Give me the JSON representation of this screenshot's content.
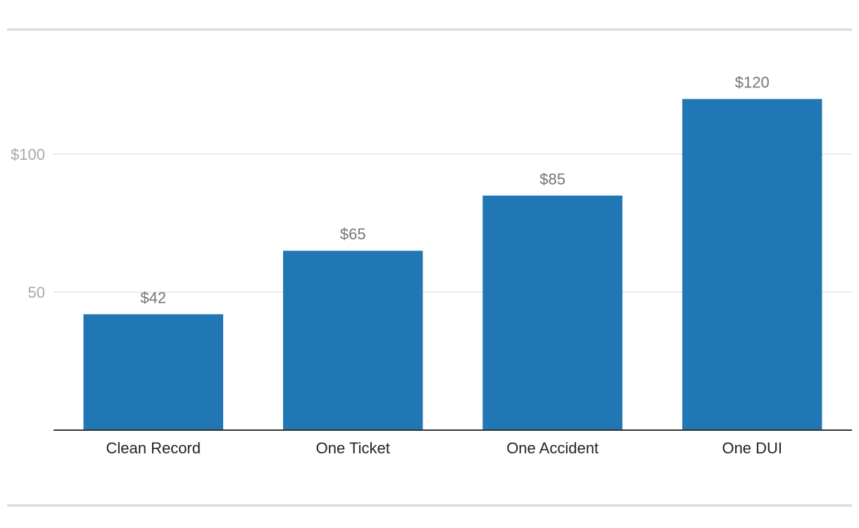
{
  "chart_data": {
    "type": "bar",
    "categories": [
      "Clean Record",
      "One Ticket",
      "One Accident",
      "One DUI"
    ],
    "values": [
      42,
      65,
      85,
      120
    ],
    "data_labels": [
      "$42",
      "$65",
      "$85",
      "$120"
    ],
    "title": "",
    "xlabel": "",
    "ylabel": "",
    "ylim": [
      0,
      133
    ],
    "yticks": [
      50,
      100
    ],
    "ytick_labels": [
      "50",
      "$100"
    ],
    "grid": true,
    "bar_color": "#2077b4",
    "grid_color": "#e3e3e3",
    "axis_color": "#333333"
  }
}
